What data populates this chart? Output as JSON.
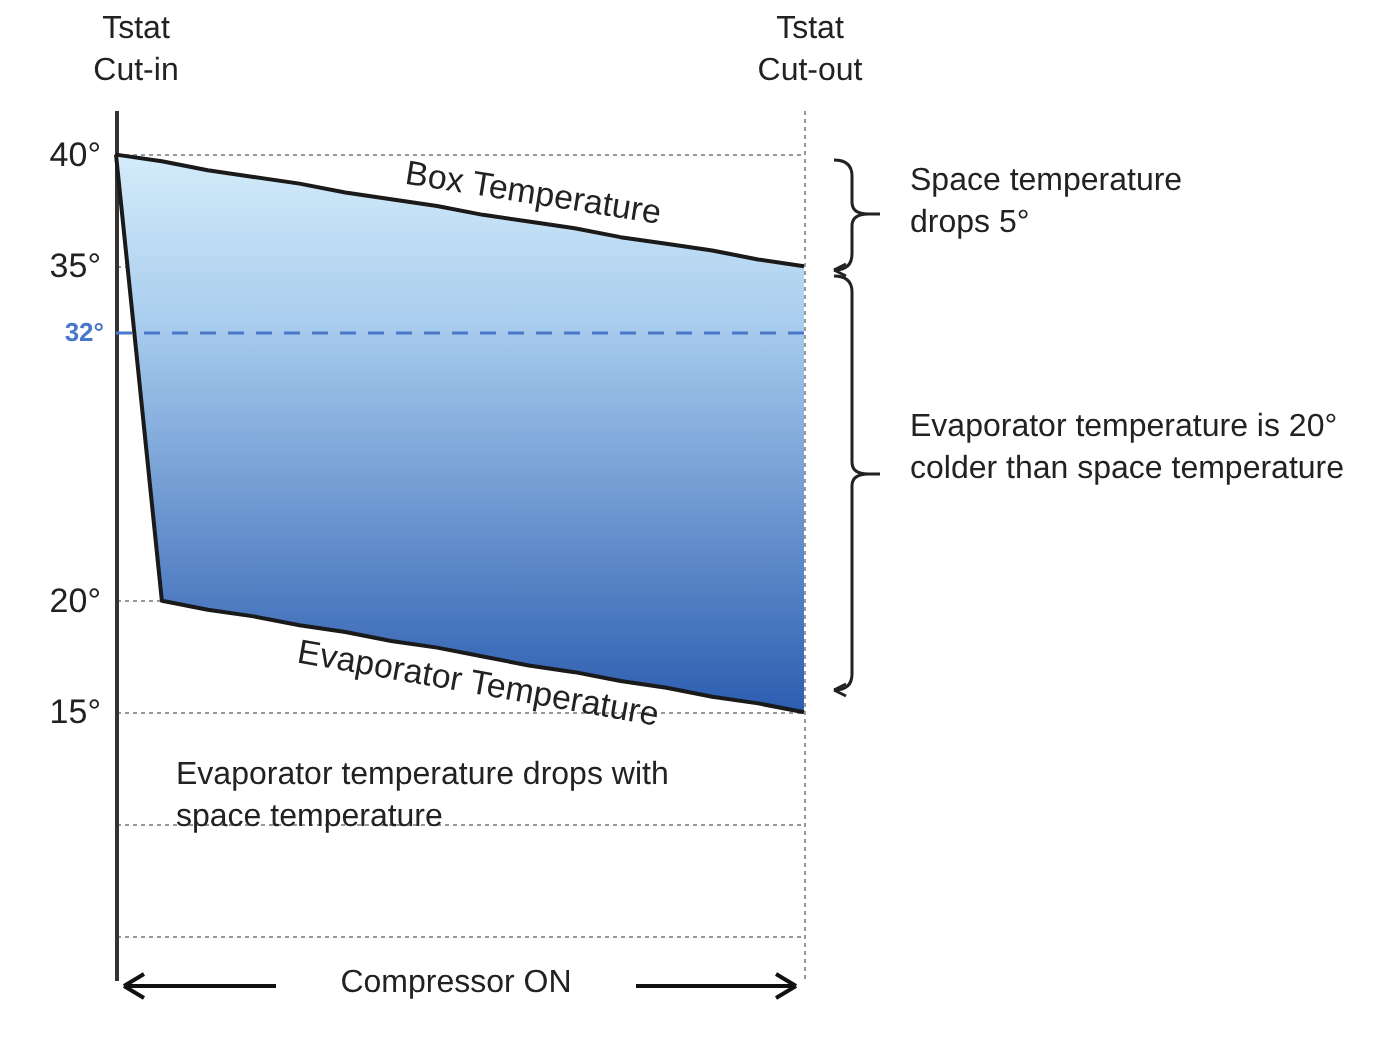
{
  "chart_data": {
    "type": "line",
    "categories": [
      null,
      null,
      null,
      null,
      null,
      null,
      null,
      null,
      null,
      null,
      null,
      null,
      null,
      null,
      null,
      null
    ],
    "series": [
      {
        "name": "Box Temperature",
        "color": "#1a1a1a",
        "values": [
          40,
          39.7,
          39.3,
          39,
          38.7,
          38.3,
          38,
          37.7,
          37.3,
          37,
          36.7,
          36.3,
          36,
          35.7,
          35.3,
          35
        ],
        "lower": [
          40,
          20,
          19.6,
          19.3,
          18.9,
          18.6,
          18.2,
          17.9,
          17.5,
          17.1,
          16.8,
          16.4,
          16.1,
          15.7,
          15.4,
          15
        ],
        "upper": [
          40,
          39.7,
          39.3,
          39,
          38.7,
          38.3,
          38,
          37.7,
          37.3,
          37,
          36.7,
          36.3,
          36,
          35.7,
          35.3,
          35
        ]
      },
      {
        "name": "Evaporator Temperature",
        "color": "#1a1a1a",
        "values": [
          40,
          20,
          19.6,
          19.3,
          18.9,
          18.6,
          18.2,
          17.9,
          17.5,
          17.1,
          16.8,
          16.4,
          16.1,
          15.7,
          15.4,
          15
        ]
      }
    ],
    "ylim": [
      3,
      42
    ],
    "yticks": [
      {
        "value": 5,
        "label": null
      },
      {
        "value": 10,
        "label": null
      },
      {
        "value": 15,
        "label": "15°"
      },
      {
        "value": 20,
        "label": "20°"
      },
      {
        "value": 35,
        "label": "35°"
      },
      {
        "value": 40,
        "label": "40°"
      }
    ],
    "ref_lines": [
      {
        "axis": "y",
        "value": 32,
        "label": "32°",
        "color": "#4a78c8",
        "line_style": "dashed"
      }
    ],
    "grid": "y",
    "tick_labels": "y",
    "annotations": [
      "Tstat Cut-in",
      "Tstat Cut-out",
      "Space temperature drops 5°",
      "Evaporator temperature is 20° colder than space temperature",
      "Evaporator temperature drops with space temperature",
      "Compressor ON"
    ]
  }
}
